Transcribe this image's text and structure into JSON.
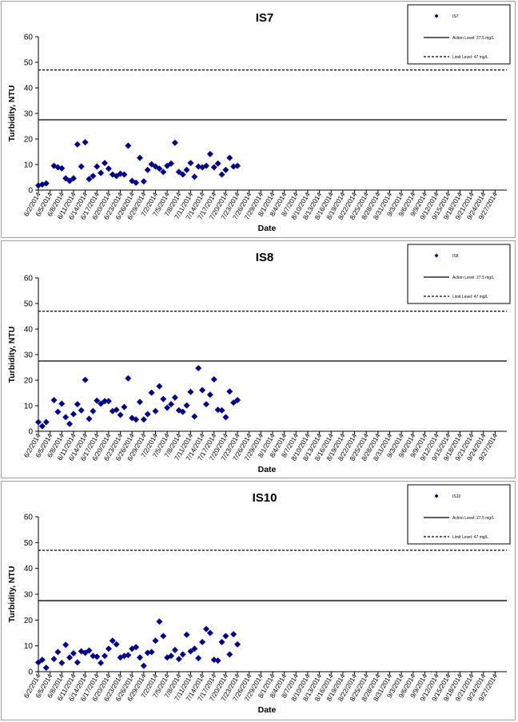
{
  "chart_data": [
    {
      "type": "scatter",
      "title": "IS7",
      "xlabel": "Date",
      "ylabel": "Turbidity, NTU",
      "ylim": [
        0,
        60
      ],
      "yticks": [
        0,
        10,
        20,
        30,
        40,
        50,
        60
      ],
      "xlim": [
        "6/2/2014",
        "9/30/2014"
      ],
      "xticks": [
        "6/2/2014",
        "6/5/2014",
        "6/8/2014",
        "6/11/2014",
        "6/14/2014",
        "6/17/2014",
        "6/20/2014",
        "6/23/2014",
        "6/26/2014",
        "6/29/2014",
        "7/2/2014",
        "7/5/2014",
        "7/8/2014",
        "7/11/2014",
        "7/14/2014",
        "7/17/2014",
        "7/20/2014",
        "7/23/2014",
        "7/26/2014",
        "7/29/2014",
        "8/1/2014",
        "8/4/2014",
        "8/7/2014",
        "8/10/2014",
        "8/13/2014",
        "8/16/2014",
        "8/19/2014",
        "8/22/2014",
        "8/25/2014",
        "8/28/2014",
        "8/31/2014",
        "9/3/2014",
        "9/6/2014",
        "9/9/2014",
        "9/12/2014",
        "9/15/2014",
        "9/18/2014",
        "9/21/2014",
        "9/24/2014",
        "9/27/2014"
      ],
      "grid": false,
      "legend_position": "top-right",
      "series": [
        {
          "name": "IS7",
          "marker": "diamond",
          "color": "#00008B",
          "points": [
            [
              "6/2/2014",
              1.8
            ],
            [
              "6/3/2014",
              2.2
            ],
            [
              "6/4/2014",
              2.6
            ],
            [
              "6/6/2014",
              9.5
            ],
            [
              "6/7/2014",
              8.9
            ],
            [
              "6/8/2014",
              8.5
            ],
            [
              "6/9/2014",
              4.6
            ],
            [
              "6/10/2014",
              3.6
            ],
            [
              "6/11/2014",
              4.6
            ],
            [
              "6/12/2014",
              17.9
            ],
            [
              "6/13/2014",
              9.2
            ],
            [
              "6/14/2014",
              18.7
            ],
            [
              "6/15/2014",
              4.3
            ],
            [
              "6/16/2014",
              5.5
            ],
            [
              "6/17/2014",
              9.2
            ],
            [
              "6/18/2014",
              6.7
            ],
            [
              "6/19/2014",
              10.6
            ],
            [
              "6/20/2014",
              8.4
            ],
            [
              "6/21/2014",
              6.1
            ],
            [
              "6/22/2014",
              5.5
            ],
            [
              "6/23/2014",
              6.4
            ],
            [
              "6/24/2014",
              6.1
            ],
            [
              "6/25/2014",
              17.4
            ],
            [
              "6/26/2014",
              3.6
            ],
            [
              "6/27/2014",
              2.9
            ],
            [
              "6/28/2014",
              12.6
            ],
            [
              "6/29/2014",
              3.4
            ],
            [
              "6/30/2014",
              7.9
            ],
            [
              "7/1/2014",
              10.1
            ],
            [
              "7/2/2014",
              9.2
            ],
            [
              "7/3/2014",
              8.4
            ],
            [
              "7/4/2014",
              7.1
            ],
            [
              "7/5/2014",
              9.5
            ],
            [
              "7/6/2014",
              10.4
            ],
            [
              "7/7/2014",
              18.5
            ],
            [
              "7/8/2014",
              7.1
            ],
            [
              "7/9/2014",
              6.1
            ],
            [
              "7/10/2014",
              7.9
            ],
            [
              "7/11/2014",
              10.6
            ],
            [
              "7/12/2014",
              5.2
            ],
            [
              "7/13/2014",
              9.2
            ],
            [
              "7/14/2014",
              8.9
            ],
            [
              "7/15/2014",
              9.5
            ],
            [
              "7/16/2014",
              14.1
            ],
            [
              "7/17/2014",
              8.9
            ],
            [
              "7/18/2014",
              10.4
            ],
            [
              "7/19/2014",
              6.1
            ],
            [
              "7/20/2014",
              7.9
            ],
            [
              "7/21/2014",
              12.6
            ],
            [
              "7/22/2014",
              9.2
            ],
            [
              "7/23/2014",
              9.5
            ]
          ]
        },
        {
          "name": "Action Level: 27.5 mg/L",
          "style": "solid",
          "value": 27.5
        },
        {
          "name": "Limit Level: 47 mg/L",
          "style": "dashed",
          "value": 47
        }
      ],
      "legend": [
        "IS7",
        "Action Level: 27.5 mg/L",
        "Limit Level: 47 mg/L"
      ]
    },
    {
      "type": "scatter",
      "title": "IS8",
      "xlabel": "Date",
      "ylabel": "Turbidity, NTU",
      "ylim": [
        0,
        60
      ],
      "yticks": [
        0,
        10,
        20,
        30,
        40,
        50,
        60
      ],
      "xlim": [
        "6/2/2014",
        "9/30/2014"
      ],
      "xticks": [
        "6/2/2014",
        "6/5/2014",
        "6/8/2014",
        "6/11/2014",
        "6/14/2014",
        "6/17/2014",
        "6/20/2014",
        "6/23/2014",
        "6/26/2014",
        "6/29/2014",
        "7/2/2014",
        "7/5/2014",
        "7/8/2014",
        "7/11/2014",
        "7/14/2014",
        "7/17/2014",
        "7/20/2014",
        "7/23/2014",
        "7/26/2014",
        "7/29/2014",
        "8/1/2014",
        "8/4/2014",
        "8/7/2014",
        "8/10/2014",
        "8/13/2014",
        "8/16/2014",
        "8/19/2014",
        "8/22/2014",
        "8/25/2014",
        "8/28/2014",
        "8/31/2014",
        "9/3/2014",
        "9/6/2014",
        "9/9/2014",
        "9/12/2014",
        "9/15/2014",
        "9/18/2014",
        "9/21/2014",
        "9/24/2014",
        "9/27/2014"
      ],
      "grid": false,
      "legend_position": "top-right",
      "series": [
        {
          "name": "IS8",
          "marker": "diamond",
          "color": "#00008B",
          "points": [
            [
              "6/2/2014",
              3.6
            ],
            [
              "6/3/2014",
              2.0
            ],
            [
              "6/4/2014",
              3.6
            ],
            [
              "6/6/2014",
              12.2
            ],
            [
              "6/7/2014",
              7.6
            ],
            [
              "6/8/2014",
              10.8
            ],
            [
              "6/9/2014",
              5.5
            ],
            [
              "6/10/2014",
              2.9
            ],
            [
              "6/11/2014",
              6.7
            ],
            [
              "6/12/2014",
              10.6
            ],
            [
              "6/13/2014",
              8.2
            ],
            [
              "6/14/2014",
              20.1
            ],
            [
              "6/15/2014",
              4.9
            ],
            [
              "6/16/2014",
              7.9
            ],
            [
              "6/17/2014",
              12.0
            ],
            [
              "6/18/2014",
              10.8
            ],
            [
              "6/19/2014",
              11.8
            ],
            [
              "6/20/2014",
              11.8
            ],
            [
              "6/21/2014",
              7.9
            ],
            [
              "6/22/2014",
              8.4
            ],
            [
              "6/23/2014",
              6.4
            ],
            [
              "6/24/2014",
              9.5
            ],
            [
              "6/25/2014",
              20.7
            ],
            [
              "6/26/2014",
              5.2
            ],
            [
              "6/27/2014",
              4.6
            ],
            [
              "6/28/2014",
              11.5
            ],
            [
              "6/29/2014",
              4.6
            ],
            [
              "6/30/2014",
              6.7
            ],
            [
              "7/1/2014",
              15.1
            ],
            [
              "7/2/2014",
              7.9
            ],
            [
              "7/3/2014",
              17.6
            ],
            [
              "7/4/2014",
              12.6
            ],
            [
              "7/5/2014",
              9.2
            ],
            [
              "7/6/2014",
              10.6
            ],
            [
              "7/7/2014",
              13.2
            ],
            [
              "7/8/2014",
              8.2
            ],
            [
              "7/9/2014",
              7.6
            ],
            [
              "7/10/2014",
              10.1
            ],
            [
              "7/11/2014",
              15.4
            ],
            [
              "7/12/2014",
              5.8
            ],
            [
              "7/13/2014",
              24.7
            ],
            [
              "7/14/2014",
              16.1
            ],
            [
              "7/15/2014",
              10.6
            ],
            [
              "7/16/2014",
              14.3
            ],
            [
              "7/17/2014",
              20.3
            ],
            [
              "7/18/2014",
              8.4
            ],
            [
              "7/19/2014",
              8.2
            ],
            [
              "7/20/2014",
              5.5
            ],
            [
              "7/21/2014",
              15.6
            ],
            [
              "7/22/2014",
              11.2
            ],
            [
              "7/23/2014",
              12.2
            ]
          ]
        },
        {
          "name": "Action Level: 27.5 mg/L",
          "style": "solid",
          "value": 27.5
        },
        {
          "name": "Limit Level: 47 mg/L",
          "style": "dashed",
          "value": 47
        }
      ],
      "legend": [
        "IS8",
        "Action Level: 27.5 mg/L",
        "Limit Level: 47 mg/L"
      ]
    },
    {
      "type": "scatter",
      "title": "IS10",
      "xlabel": "Date",
      "ylabel": "Turbidity, NTU",
      "ylim": [
        0,
        60
      ],
      "yticks": [
        0,
        10,
        20,
        30,
        40,
        50,
        60
      ],
      "xlim": [
        "6/2/2014",
        "9/30/2014"
      ],
      "xticks": [
        "6/2/2014",
        "6/5/2014",
        "6/8/2014",
        "6/11/2014",
        "6/14/2014",
        "6/17/2014",
        "6/20/2014",
        "6/23/2014",
        "6/26/2014",
        "6/29/2014",
        "7/2/2014",
        "7/5/2014",
        "7/8/2014",
        "7/11/2014",
        "7/14/2014",
        "7/17/2014",
        "7/20/2014",
        "7/23/2014",
        "7/26/2014",
        "7/29/2014",
        "8/1/2014",
        "8/4/2014",
        "8/7/2014",
        "8/10/2014",
        "8/13/2014",
        "8/16/2014",
        "8/19/2014",
        "8/22/2014",
        "8/25/2014",
        "8/28/2014",
        "8/31/2014",
        "9/3/2014",
        "9/6/2014",
        "9/9/2014",
        "9/12/2014",
        "9/15/2014",
        "9/18/2014",
        "9/21/2014",
        "9/24/2014",
        "9/27/2014"
      ],
      "grid": false,
      "legend_position": "top-right",
      "series": [
        {
          "name": "IS10",
          "marker": "diamond",
          "color": "#00008B",
          "points": [
            [
              "6/2/2014",
              3.6
            ],
            [
              "6/3/2014",
              4.6
            ],
            [
              "6/4/2014",
              1.5
            ],
            [
              "6/6/2014",
              4.9
            ],
            [
              "6/7/2014",
              7.6
            ],
            [
              "6/8/2014",
              3.4
            ],
            [
              "6/9/2014",
              10.4
            ],
            [
              "6/10/2014",
              5.5
            ],
            [
              "6/11/2014",
              7.1
            ],
            [
              "6/12/2014",
              3.6
            ],
            [
              "6/13/2014",
              7.9
            ],
            [
              "6/14/2014",
              7.3
            ],
            [
              "6/15/2014",
              8.2
            ],
            [
              "6/16/2014",
              6.1
            ],
            [
              "6/17/2014",
              5.8
            ],
            [
              "6/18/2014",
              3.4
            ],
            [
              "6/19/2014",
              6.1
            ],
            [
              "6/20/2014",
              8.9
            ],
            [
              "6/21/2014",
              12.0
            ],
            [
              "6/22/2014",
              10.6
            ],
            [
              "6/23/2014",
              5.5
            ],
            [
              "6/24/2014",
              6.1
            ],
            [
              "6/25/2014",
              6.4
            ],
            [
              "6/26/2014",
              8.9
            ],
            [
              "6/27/2014",
              9.5
            ],
            [
              "6/28/2014",
              5.5
            ],
            [
              "6/29/2014",
              2.3
            ],
            [
              "6/30/2014",
              7.3
            ],
            [
              "7/1/2014",
              7.6
            ],
            [
              "7/2/2014",
              12.0
            ],
            [
              "7/3/2014",
              19.4
            ],
            [
              "7/4/2014",
              13.8
            ],
            [
              "7/5/2014",
              5.5
            ],
            [
              "7/6/2014",
              6.1
            ],
            [
              "7/7/2014",
              8.4
            ],
            [
              "7/8/2014",
              4.9
            ],
            [
              "7/9/2014",
              6.7
            ],
            [
              "7/10/2014",
              14.3
            ],
            [
              "7/11/2014",
              7.9
            ],
            [
              "7/12/2014",
              8.9
            ],
            [
              "7/13/2014",
              5.2
            ],
            [
              "7/14/2014",
              11.5
            ],
            [
              "7/15/2014",
              16.5
            ],
            [
              "7/16/2014",
              15.0
            ],
            [
              "7/17/2014",
              4.6
            ],
            [
              "7/18/2014",
              4.3
            ],
            [
              "7/19/2014",
              11.5
            ],
            [
              "7/20/2014",
              13.8
            ],
            [
              "7/21/2014",
              6.7
            ],
            [
              "7/22/2014",
              14.5
            ],
            [
              "7/23/2014",
              10.6
            ]
          ]
        },
        {
          "name": "Action Level: 27.5 mg/L",
          "style": "solid",
          "value": 27.5
        },
        {
          "name": "Limit Level: 47 mg/L",
          "style": "dashed",
          "value": 47
        }
      ],
      "legend": [
        "IS10",
        "Action Level: 27.5 mg/L",
        "Limit Level: 47 mg/L"
      ]
    }
  ]
}
